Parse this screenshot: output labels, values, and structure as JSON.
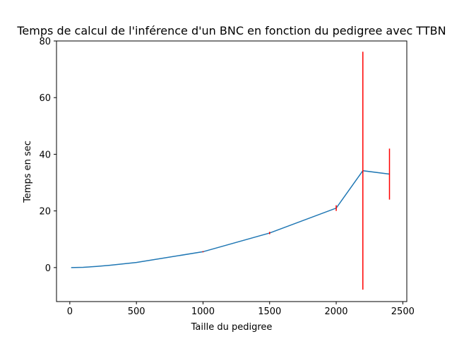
{
  "chart_data": {
    "type": "line",
    "title": "Temps de calcul de l'inférence d'un BNC en fonction du pedigree avec TTBN",
    "xlabel": "Taille du pedigree",
    "ylabel": "Temps en sec",
    "xlim": [
      -100,
      2530
    ],
    "ylim": [
      -12,
      80
    ],
    "xticks": [
      0,
      500,
      1000,
      1500,
      2000,
      2500
    ],
    "yticks": [
      0,
      20,
      40,
      60,
      80
    ],
    "grid": false,
    "series": [
      {
        "color": "#1f77b4",
        "error_color": "#ff0000",
        "points": [
          {
            "x": 10,
            "y": 0.0,
            "err": 0.0
          },
          {
            "x": 100,
            "y": 0.1,
            "err": 0.0
          },
          {
            "x": 200,
            "y": 0.4,
            "err": 0.0
          },
          {
            "x": 300,
            "y": 0.8,
            "err": 0.0
          },
          {
            "x": 400,
            "y": 1.3,
            "err": 0.0
          },
          {
            "x": 500,
            "y": 1.8,
            "err": 0.0
          },
          {
            "x": 1000,
            "y": 5.6,
            "err": 0.2
          },
          {
            "x": 1500,
            "y": 12.2,
            "err": 0.4
          },
          {
            "x": 2000,
            "y": 21.0,
            "err": 1.0
          },
          {
            "x": 2200,
            "y": 34.2,
            "err": 42.0
          },
          {
            "x": 2400,
            "y": 33.0,
            "err": 9.0
          }
        ]
      }
    ]
  }
}
